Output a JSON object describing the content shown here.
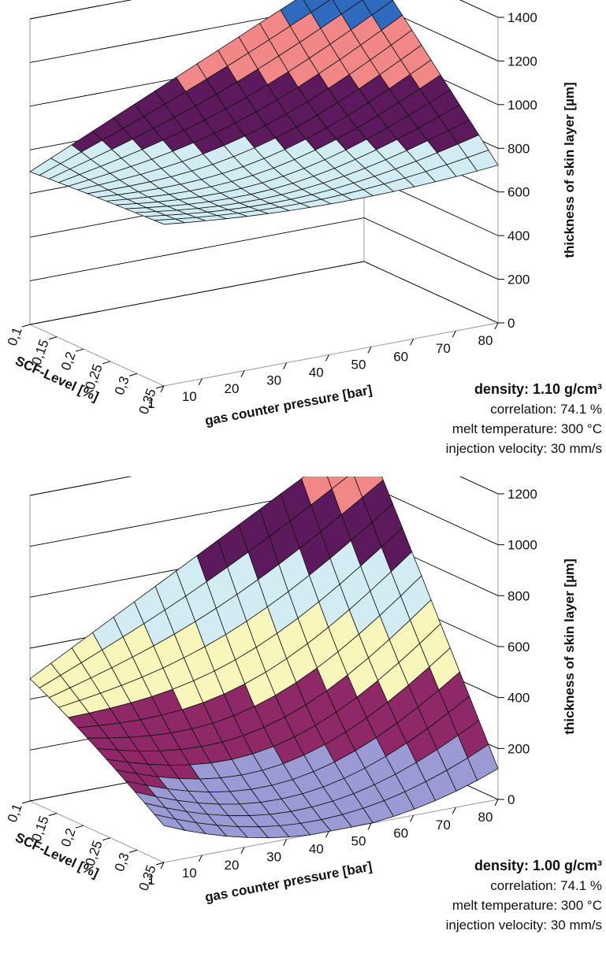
{
  "chart_data": [
    {
      "type": "surface3d",
      "title": "",
      "xlabel": "gas counter pressure [bar]",
      "ylabel": "SCF-Level [%]",
      "zlabel": "thickness of skin layer [µm]",
      "x_ticks": [
        "10",
        "20",
        "30",
        "40",
        "50",
        "60",
        "70",
        "80"
      ],
      "y_ticks": [
        "0,1",
        "0,15",
        "0,2",
        "0,25",
        "0,3",
        "0,35"
      ],
      "x_tick_values": [
        10,
        20,
        30,
        40,
        50,
        60,
        70,
        80
      ],
      "y_tick_values": [
        0.1,
        0.15,
        0.2,
        0.25,
        0.3,
        0.35
      ],
      "x_corner_tick": "1",
      "zlim": [
        0,
        1400
      ],
      "z_ticks": [
        "0",
        "200",
        "400",
        "600",
        "800",
        "1000",
        "1200",
        "1400"
      ],
      "xlim": [
        1,
        80
      ],
      "ylim": [
        0.1,
        0.35
      ],
      "colors": [
        "#9a9bd4",
        "#8e2866",
        "#f8f6bb",
        "#d2ecf3",
        "#5c1a5c",
        "#f28787",
        "#2e6bbf"
      ],
      "surface": {
        "z_x1_y01": 700,
        "z_x80_y01": 1400,
        "z_x1_y035": 760,
        "z_x80_y035": 740,
        "z_min_approx": 690,
        "z_min_at": [
          40,
          0.35
        ]
      },
      "annotations": {
        "density": "density: 1.10 g/cm³",
        "correlation": "correlation:  74.1 %",
        "melt_temperature": "melt temperature: 300 °C",
        "injection_velocity": "injection velocity: 30 mm/s"
      }
    },
    {
      "type": "surface3d",
      "title": "",
      "xlabel": "gas counter pressure [bar]",
      "ylabel": "SCF-Level [%]",
      "zlabel": "thickness of skin layer [µm]",
      "x_ticks": [
        "10",
        "20",
        "30",
        "40",
        "50",
        "60",
        "70",
        "80"
      ],
      "y_ticks": [
        "0,1",
        "0,15",
        "0,2",
        "0,25",
        "0,3",
        "0,35"
      ],
      "x_tick_values": [
        10,
        20,
        30,
        40,
        50,
        60,
        70,
        80
      ],
      "y_tick_values": [
        0.1,
        0.15,
        0.2,
        0.25,
        0.3,
        0.35
      ],
      "x_corner_tick": "1",
      "zlim": [
        0,
        1200
      ],
      "z_ticks": [
        "0",
        "200",
        "400",
        "600",
        "800",
        "1000",
        "1200"
      ],
      "xlim": [
        1,
        80
      ],
      "ylim": [
        0.1,
        0.35
      ],
      "colors": [
        "#9a9bd4",
        "#8e2866",
        "#f8f6bb",
        "#d2ecf3",
        "#5c1a5c",
        "#f28787"
      ],
      "surface": {
        "z_x1_y01": 480,
        "z_x80_y01": 1200,
        "z_x1_y035": 240,
        "z_x80_y035": 140,
        "z_min_approx": 0,
        "z_min_at": [
          35,
          0.35
        ]
      },
      "annotations": {
        "density": "density: 1.00 g/cm³",
        "correlation": "correlation:  74.1 %",
        "melt_temperature": "melt temperature: 300 °C",
        "injection_velocity": "injection velocity: 30 mm/s"
      }
    }
  ]
}
